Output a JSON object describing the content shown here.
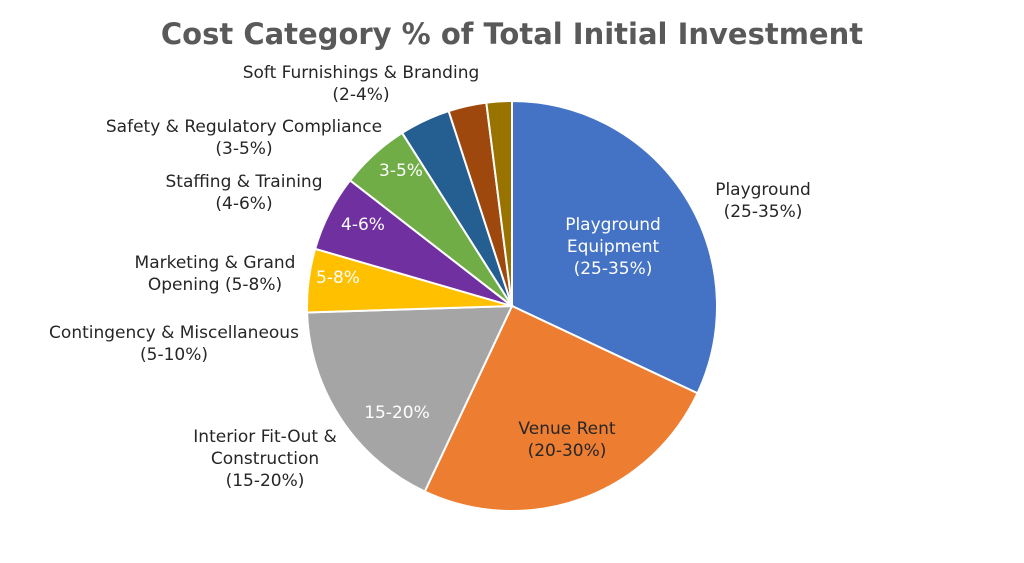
{
  "chart_data": {
    "type": "pie",
    "title": "Cost Category % of Total Initial Investment",
    "start_angle_deg": 0,
    "direction": "clockwise",
    "slices": [
      {
        "key": "playground",
        "value": 32,
        "color": "#4472C4",
        "inside_label": [
          "Playground",
          "Equipment",
          "(25-35%)"
        ],
        "inside_color": "#ffffff",
        "outside_label": [
          "Playground",
          "(25-35%)"
        ]
      },
      {
        "key": "venue-rent",
        "value": 25,
        "color": "#ED7D31",
        "inside_label": [
          "Venue Rent",
          "(20-30%)"
        ],
        "inside_color": "#262626",
        "outside_label": []
      },
      {
        "key": "interior-fit-out",
        "value": 17.5,
        "color": "#A5A5A5",
        "inside_label": [
          "15-20%"
        ],
        "inside_color": "#ffffff",
        "outside_label": [
          "Interior Fit-Out &",
          "Construction",
          "(15-20%)"
        ]
      },
      {
        "key": "contingency",
        "value": 5,
        "color": "#FFC000",
        "inside_label": [],
        "inside_color": "#262626",
        "outside_label": [
          "Contingency & Miscellaneous",
          "(5-10%)"
        ]
      },
      {
        "key": "marketing",
        "value": 6,
        "color": "#7030A0",
        "inside_label": [
          "5-8%"
        ],
        "inside_color": "#ffffff",
        "outside_label": [
          "Marketing & Grand",
          "Opening (5-8%)"
        ]
      },
      {
        "key": "staffing",
        "value": 5.5,
        "color": "#70AD47",
        "inside_label": [
          "4-6%"
        ],
        "inside_color": "#ffffff",
        "outside_label": [
          "Staffing & Training",
          "(4-6%)"
        ]
      },
      {
        "key": "safety",
        "value": 4,
        "color": "#255E91",
        "inside_label": [
          "3-5%"
        ],
        "inside_color": "#ffffff",
        "outside_label": [
          "Safety & Regulatory Compliance",
          "(3-5%)"
        ]
      },
      {
        "key": "soft-furnishings",
        "value": 3,
        "color": "#9E480E",
        "inside_label": [],
        "inside_color": "#ffffff",
        "outside_label": [
          "Soft Furnishings & Branding",
          "(2-4%)"
        ]
      },
      {
        "key": "other",
        "value": 2,
        "color": "#997300",
        "inside_label": [],
        "inside_color": "#ffffff",
        "outside_label": []
      }
    ]
  }
}
